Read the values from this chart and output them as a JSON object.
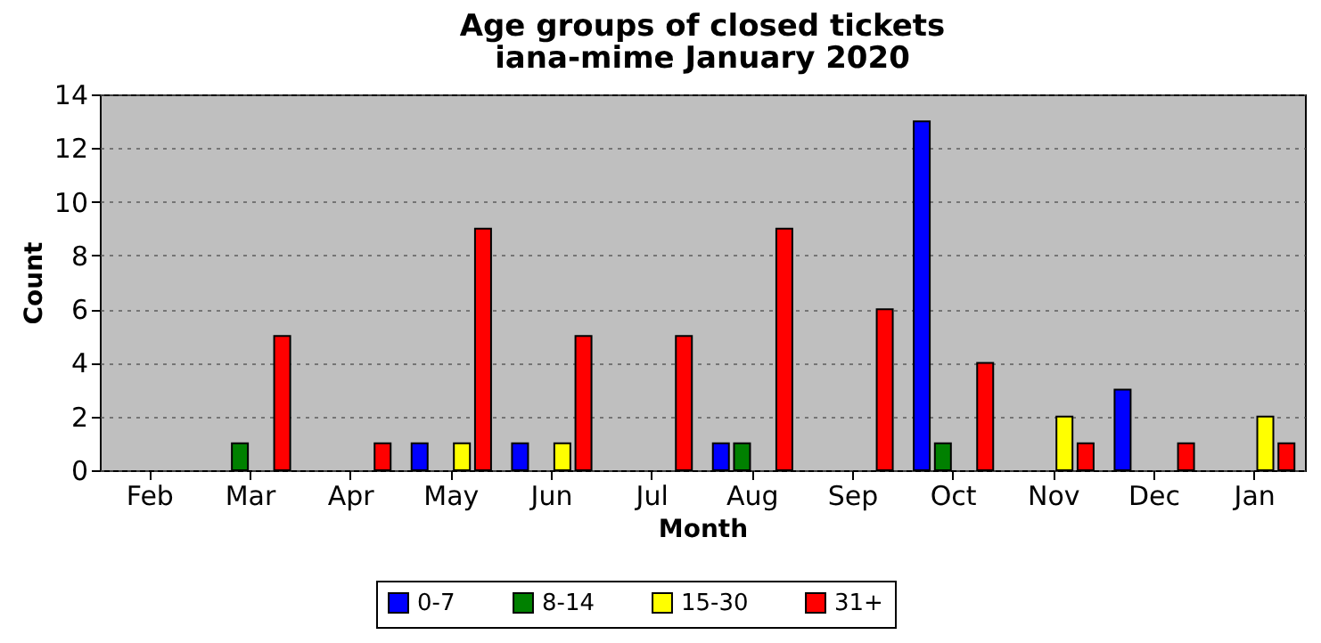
{
  "chart_data": {
    "type": "bar",
    "title": "Age groups of closed tickets",
    "subtitle": "iana-mime January 2020",
    "xlabel": "Month",
    "ylabel": "Count",
    "categories": [
      "Feb",
      "Mar",
      "Apr",
      "May",
      "Jun",
      "Jul",
      "Aug",
      "Sep",
      "Oct",
      "Nov",
      "Dec",
      "Jan"
    ],
    "series": [
      {
        "name": "0-7",
        "color": "#0000ff",
        "values": [
          0,
          0,
          0,
          1,
          1,
          0,
          1,
          0,
          13,
          0,
          3,
          0
        ]
      },
      {
        "name": "8-14",
        "color": "#008000",
        "values": [
          0,
          1,
          0,
          0,
          0,
          0,
          1,
          0,
          1,
          0,
          0,
          0
        ]
      },
      {
        "name": "15-30",
        "color": "#ffff00",
        "values": [
          0,
          0,
          0,
          1,
          1,
          0,
          0,
          0,
          0,
          2,
          0,
          2
        ]
      },
      {
        "name": "31+",
        "color": "#ff0000",
        "values": [
          0,
          5,
          1,
          9,
          5,
          5,
          9,
          6,
          4,
          1,
          1,
          1
        ]
      }
    ],
    "ylim": [
      0,
      14
    ],
    "yticks": [
      0,
      2,
      4,
      6,
      8,
      10,
      12,
      14
    ],
    "grid": "y",
    "legend": "bottom"
  }
}
